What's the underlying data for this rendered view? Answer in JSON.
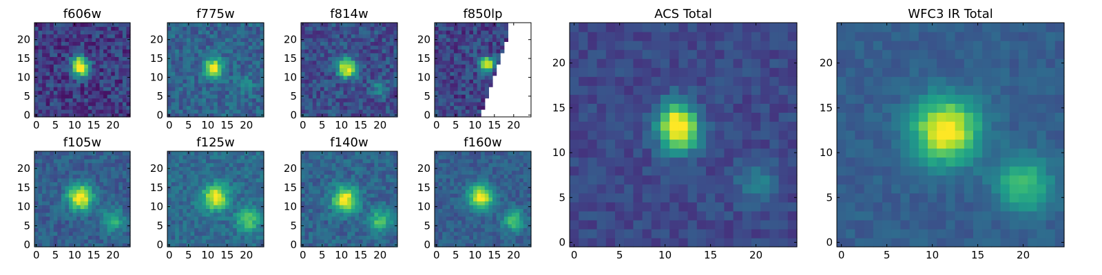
{
  "figure": {
    "colormap": "viridis",
    "colormap_stops": [
      "#440154",
      "#482878",
      "#3e4989",
      "#31688e",
      "#26828e",
      "#1f9e89",
      "#35b779",
      "#6ece58",
      "#b5de2b",
      "#fde725"
    ],
    "masked_color": "#ffffff"
  },
  "chart_data": [
    {
      "type": "heatmap",
      "title": "f606w",
      "grid": [
        25,
        25
      ],
      "xlim": [
        -0.5,
        24.5
      ],
      "ylim": [
        -0.5,
        24.5
      ],
      "xticks": [
        0,
        5,
        10,
        15,
        20
      ],
      "yticks": [
        0,
        5,
        10,
        15,
        20
      ],
      "background_level": 0.18,
      "noise": 0.14,
      "sources": [
        {
          "x": 11.5,
          "y": 12.5,
          "amp": 0.85,
          "sigma": 1.6
        },
        {
          "x": 11,
          "y": 15,
          "amp": 0.3,
          "sigma": 1.2
        }
      ]
    },
    {
      "type": "heatmap",
      "title": "f775w",
      "grid": [
        25,
        25
      ],
      "xlim": [
        -0.5,
        24.5
      ],
      "ylim": [
        -0.5,
        24.5
      ],
      "xticks": [
        0,
        5,
        10,
        15,
        20
      ],
      "yticks": [
        0,
        5,
        10,
        15,
        20
      ],
      "background_level": 0.32,
      "noise": 0.12,
      "sources": [
        {
          "x": 11.5,
          "y": 12.5,
          "amp": 0.75,
          "sigma": 1.7
        },
        {
          "x": 20,
          "y": 8,
          "amp": 0.18,
          "sigma": 1.5
        }
      ]
    },
    {
      "type": "heatmap",
      "title": "f814w",
      "grid": [
        25,
        25
      ],
      "xlim": [
        -0.5,
        24.5
      ],
      "ylim": [
        -0.5,
        24.5
      ],
      "xticks": [
        0,
        5,
        10,
        15,
        20
      ],
      "yticks": [
        0,
        5,
        10,
        15,
        20
      ],
      "background_level": 0.24,
      "noise": 0.13,
      "sources": [
        {
          "x": 11.5,
          "y": 12.5,
          "amp": 0.8,
          "sigma": 1.7
        },
        {
          "x": 20,
          "y": 7,
          "amp": 0.3,
          "sigma": 1.4
        }
      ]
    },
    {
      "type": "heatmap",
      "title": "f850lp",
      "grid": [
        25,
        25
      ],
      "xlim": [
        -0.5,
        24.5
      ],
      "ylim": [
        -0.5,
        24.5
      ],
      "xticks": [
        0,
        5,
        10,
        15,
        20
      ],
      "yticks": [
        0,
        5,
        10,
        15,
        20
      ],
      "background_level": 0.2,
      "noise": 0.14,
      "sources": [
        {
          "x": 13,
          "y": 13.5,
          "amp": 0.85,
          "sigma": 1.3
        }
      ],
      "mask": "upper-right wedge beyond diagonal from (11,0) to (19,24)"
    },
    {
      "type": "heatmap",
      "title": "f105w",
      "grid": [
        25,
        25
      ],
      "xlim": [
        -0.5,
        24.5
      ],
      "ylim": [
        -0.5,
        24.5
      ],
      "xticks": [
        0,
        5,
        10,
        15,
        20
      ],
      "yticks": [
        0,
        5,
        10,
        15,
        20
      ],
      "background_level": 0.3,
      "noise": 0.09,
      "sources": [
        {
          "x": 11.5,
          "y": 12.5,
          "amp": 0.75,
          "sigma": 2.3
        },
        {
          "x": 20,
          "y": 6.5,
          "amp": 0.35,
          "sigma": 2.0
        }
      ]
    },
    {
      "type": "heatmap",
      "title": "f125w",
      "grid": [
        25,
        25
      ],
      "xlim": [
        -0.5,
        24.5
      ],
      "ylim": [
        -0.5,
        24.5
      ],
      "xticks": [
        0,
        5,
        10,
        15,
        20
      ],
      "yticks": [
        0,
        5,
        10,
        15,
        20
      ],
      "background_level": 0.35,
      "noise": 0.1,
      "sources": [
        {
          "x": 12,
          "y": 12.5,
          "amp": 0.65,
          "sigma": 2.3
        },
        {
          "x": 20.5,
          "y": 6.5,
          "amp": 0.45,
          "sigma": 2.0
        }
      ]
    },
    {
      "type": "heatmap",
      "title": "f140w",
      "grid": [
        25,
        25
      ],
      "xlim": [
        -0.5,
        24.5
      ],
      "ylim": [
        -0.5,
        24.5
      ],
      "xticks": [
        0,
        5,
        10,
        15,
        20
      ],
      "yticks": [
        0,
        5,
        10,
        15,
        20
      ],
      "background_level": 0.32,
      "noise": 0.1,
      "sources": [
        {
          "x": 11,
          "y": 12,
          "amp": 0.7,
          "sigma": 2.3
        },
        {
          "x": 20,
          "y": 6.5,
          "amp": 0.4,
          "sigma": 2.0
        }
      ]
    },
    {
      "type": "heatmap",
      "title": "f160w",
      "grid": [
        25,
        25
      ],
      "xlim": [
        -0.5,
        24.5
      ],
      "ylim": [
        -0.5,
        24.5
      ],
      "xticks": [
        0,
        5,
        10,
        15,
        20
      ],
      "yticks": [
        0,
        5,
        10,
        15,
        20
      ],
      "background_level": 0.3,
      "noise": 0.08,
      "sources": [
        {
          "x": 11.5,
          "y": 12.5,
          "amp": 0.75,
          "sigma": 2.2
        },
        {
          "x": 20,
          "y": 6.5,
          "amp": 0.45,
          "sigma": 1.9
        }
      ]
    },
    {
      "type": "heatmap",
      "title": "ACS Total",
      "grid": [
        25,
        25
      ],
      "xlim": [
        -0.5,
        24.5
      ],
      "ylim": [
        -0.5,
        24.5
      ],
      "xticks": [
        0,
        5,
        10,
        15,
        20
      ],
      "yticks": [
        0,
        5,
        10,
        15,
        20
      ],
      "background_level": 0.22,
      "noise": 0.07,
      "sources": [
        {
          "x": 11.5,
          "y": 12.5,
          "amp": 0.85,
          "sigma": 1.6
        },
        {
          "x": 11,
          "y": 15,
          "amp": 0.25,
          "sigma": 1.2
        },
        {
          "x": 20,
          "y": 6.5,
          "amp": 0.22,
          "sigma": 1.6
        }
      ]
    },
    {
      "type": "heatmap",
      "title": "WFC3 IR Total",
      "grid": [
        25,
        25
      ],
      "xlim": [
        -0.5,
        24.5
      ],
      "ylim": [
        -0.5,
        24.5
      ],
      "xticks": [
        0,
        5,
        10,
        15,
        20
      ],
      "yticks": [
        0,
        5,
        10,
        15,
        20
      ],
      "background_level": 0.3,
      "noise": 0.05,
      "sources": [
        {
          "x": 11.5,
          "y": 12.5,
          "amp": 0.75,
          "sigma": 2.5
        },
        {
          "x": 20,
          "y": 6.5,
          "amp": 0.42,
          "sigma": 2.1
        }
      ]
    }
  ]
}
